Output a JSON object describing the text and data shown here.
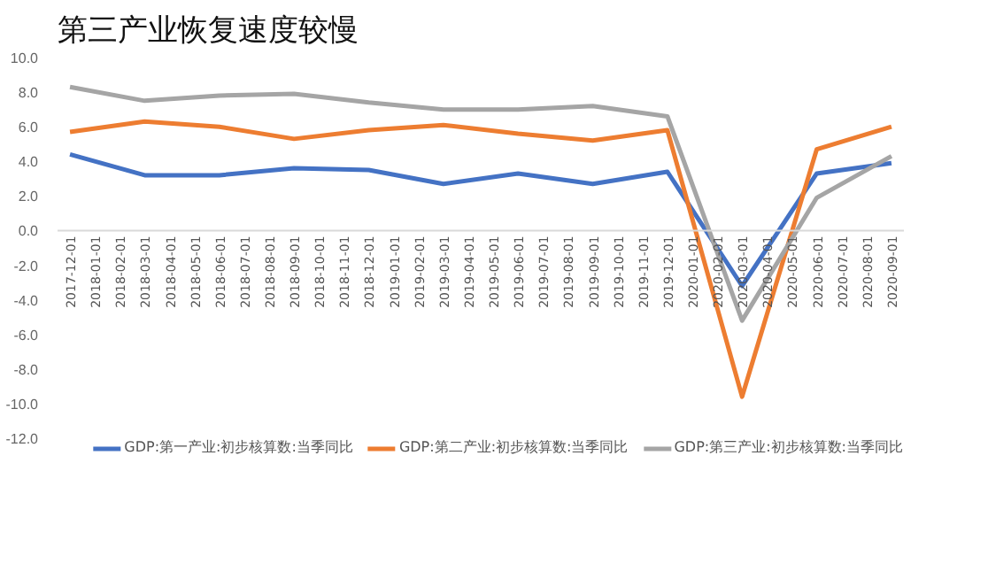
{
  "chart_data": {
    "type": "line",
    "title": "第三产业恢复速度较慢",
    "categories": [
      "2017-12-01",
      "2018-01-01",
      "2018-02-01",
      "2018-03-01",
      "2018-04-01",
      "2018-05-01",
      "2018-06-01",
      "2018-07-01",
      "2018-08-01",
      "2018-09-01",
      "2018-10-01",
      "2018-11-01",
      "2018-12-01",
      "2019-01-01",
      "2019-02-01",
      "2019-03-01",
      "2019-04-01",
      "2019-05-01",
      "2019-06-01",
      "2019-07-01",
      "2019-08-01",
      "2019-09-01",
      "2019-10-01",
      "2019-11-01",
      "2019-12-01",
      "2020-01-01",
      "2020-02-01",
      "2020-03-01",
      "2020-04-01",
      "2020-05-01",
      "2020-06-01",
      "2020-07-01",
      "2020-08-01",
      "2020-09-01"
    ],
    "series": [
      {
        "name": "GDP:第一产业:初步核算数:当季同比",
        "color": "#4472c4",
        "values": [
          4.4,
          null,
          null,
          3.2,
          null,
          null,
          3.2,
          null,
          null,
          3.6,
          null,
          null,
          3.5,
          null,
          null,
          2.7,
          null,
          null,
          3.3,
          null,
          null,
          2.7,
          null,
          null,
          3.4,
          null,
          null,
          -3.2,
          null,
          null,
          3.3,
          null,
          null,
          3.9
        ]
      },
      {
        "name": "GDP:第二产业:初步核算数:当季同比",
        "color": "#ed7d31",
        "values": [
          5.7,
          null,
          null,
          6.3,
          null,
          null,
          6.0,
          null,
          null,
          5.3,
          null,
          null,
          5.8,
          null,
          null,
          6.1,
          null,
          null,
          5.6,
          null,
          null,
          5.2,
          null,
          null,
          5.8,
          null,
          null,
          -9.6,
          null,
          null,
          4.7,
          null,
          null,
          6.0
        ]
      },
      {
        "name": "GDP:第三产业:初步核算数:当季同比",
        "color": "#a5a5a5",
        "values": [
          8.3,
          null,
          null,
          7.5,
          null,
          null,
          7.8,
          null,
          null,
          7.9,
          null,
          null,
          7.4,
          null,
          null,
          7.0,
          null,
          null,
          7.0,
          null,
          null,
          7.2,
          null,
          null,
          6.6,
          null,
          null,
          -5.2,
          null,
          null,
          1.9,
          null,
          null,
          4.3
        ]
      }
    ],
    "ylim": [
      -12,
      10
    ],
    "yticks": [
      {
        "value": -12,
        "label": "-12.0"
      },
      {
        "value": -10,
        "label": "-10.0"
      },
      {
        "value": -8,
        "label": "-8.0"
      },
      {
        "value": -6,
        "label": "-6.0"
      },
      {
        "value": -4,
        "label": "-4.0"
      },
      {
        "value": -2,
        "label": "-2.0"
      },
      {
        "value": 0,
        "label": "0.0"
      },
      {
        "value": 2,
        "label": "2.0"
      },
      {
        "value": 4,
        "label": "4.0"
      },
      {
        "value": 6,
        "label": "6.0"
      },
      {
        "value": 8,
        "label": "8.0"
      },
      {
        "value": 10,
        "label": "10.0"
      }
    ],
    "grid": false,
    "legend": "bottom",
    "marker": "none",
    "line_style": "solid"
  }
}
